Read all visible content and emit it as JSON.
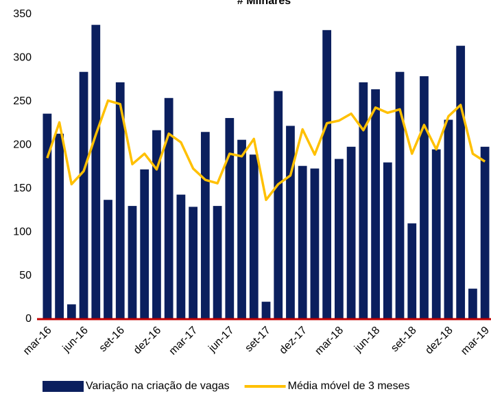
{
  "chart_data": {
    "type": "bar_line",
    "title": "# Milhares",
    "categories": [
      "mar-16",
      null,
      null,
      "jun-16",
      null,
      null,
      "set-16",
      null,
      null,
      "dez-16",
      null,
      null,
      "mar-17",
      null,
      null,
      "jun-17",
      null,
      null,
      "set-17",
      null,
      null,
      "dez-17",
      null,
      null,
      "mar-18",
      null,
      null,
      "jun-18",
      null,
      null,
      "set-18",
      null,
      null,
      "dez-18",
      null,
      null,
      "mar-19"
    ],
    "series": [
      {
        "name": "Variação na criação de vagas",
        "type": "bar",
        "color": "#0b1f5e",
        "values": [
          236,
          213,
          17,
          284,
          338,
          137,
          272,
          130,
          172,
          217,
          254,
          143,
          129,
          215,
          130,
          231,
          206,
          189,
          20,
          262,
          222,
          176,
          173,
          332,
          184,
          198,
          272,
          264,
          180,
          284,
          110,
          279,
          195,
          229,
          314,
          35,
          198
        ]
      },
      {
        "name": "Média móvel de 3 meses",
        "type": "line",
        "color": "#ffc000",
        "values": [
          185,
          226,
          155,
          170,
          212,
          251,
          247,
          178,
          190,
          172,
          213,
          203,
          173,
          160,
          156,
          190,
          187,
          207,
          137,
          155,
          165,
          218,
          189,
          225,
          228,
          236,
          217,
          243,
          237,
          241,
          190,
          223,
          195,
          233,
          246,
          190,
          181
        ]
      }
    ],
    "ylim": [
      0,
      350
    ],
    "yticks": [
      0,
      50,
      100,
      150,
      200,
      250,
      300,
      350
    ],
    "grid": false,
    "legend": "bottom"
  }
}
